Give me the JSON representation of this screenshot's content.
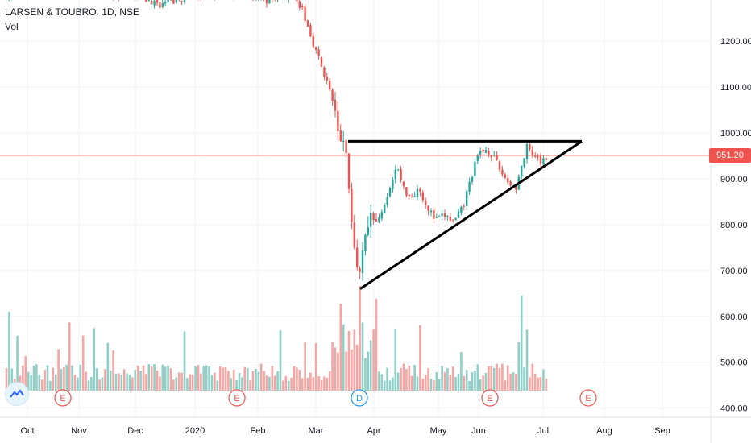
{
  "symbol": {
    "title": "LARSEN & TOUBRO, 1D, NSE",
    "volume_label": "Vol"
  },
  "price_axis": {
    "ticks": [
      "1200.00",
      "1100.00",
      "1000.00",
      "900.00",
      "800.00",
      "700.00",
      "600.00",
      "500.00",
      "400.00"
    ],
    "current_price": "951.20"
  },
  "time_axis": {
    "ticks": [
      "Oct",
      "Nov",
      "Dec",
      "2020",
      "Feb",
      "Mar",
      "Apr",
      "May",
      "Jun",
      "Jul",
      "Aug",
      "Sep"
    ]
  },
  "events": {
    "earnings_label": "E",
    "dividend_label": "D"
  },
  "colors": {
    "up": "#26a69a",
    "down": "#ef5350",
    "up_volume": "#8fcfc7",
    "down_volume": "#f5a5a3",
    "grid": "#f0f3fa",
    "price_line": "#ef5350",
    "trendline": "#000000"
  },
  "icons": {
    "logo": "tradingview-logo-icon"
  },
  "chart_data": {
    "type": "candlestick",
    "title": "LARSEN & TOUBRO, 1D, NSE",
    "ylim": [
      380,
      1290
    ],
    "y_unit": "INR",
    "last_close": 951.2,
    "pattern": {
      "name": "ascending-triangle",
      "resistance": 982,
      "support_start": {
        "x": "late Mar",
        "y": 660
      },
      "support_end": {
        "x": "late Jul",
        "y": 982
      }
    },
    "approx_path": [
      {
        "x": "Mar",
        "y": 1180
      },
      {
        "x": "mid Mar",
        "y": 1000
      },
      {
        "x": "late Mar",
        "y": 700
      },
      {
        "x": "Apr",
        "y": 820
      },
      {
        "x": "mid Apr",
        "y": 940
      },
      {
        "x": "May",
        "y": 850
      },
      {
        "x": "mid May",
        "y": 800
      },
      {
        "x": "Jun",
        "y": 960
      },
      {
        "x": "mid Jun",
        "y": 880
      },
      {
        "x": "late Jun",
        "y": 975
      },
      {
        "x": "Jul",
        "y": 951
      }
    ]
  }
}
